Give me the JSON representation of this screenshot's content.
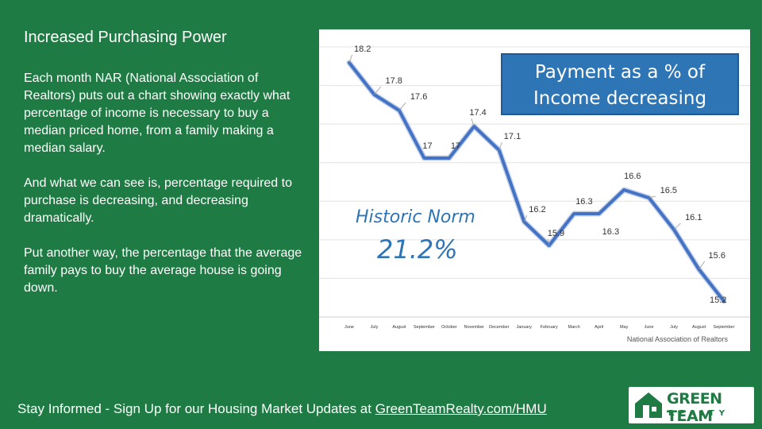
{
  "slide": {
    "title": "Increased Purchasing Power",
    "paragraphs": [
      "Each month NAR (National Association of Realtors) puts out a chart showing exactly what percentage of income is necessary to buy a median priced home, from a family making a median salary.",
      "And what we can see is, percentage required to purchase is decreasing, and decreasing dramatically.",
      "Put another way, the percentage that the average family pays to buy the average house is going down."
    ]
  },
  "footer": {
    "text": "Stay Informed - Sign Up for our Housing Market Updates at ",
    "link": "GreenTeamRealty.com/HMU"
  },
  "logo": {
    "line1": "GREEN TEAM",
    "line2": "REALTY"
  },
  "colors": {
    "background": "#1e7b43",
    "line": "#4472c4",
    "callout": "#2e75b6",
    "accent_text": "#2e75b6"
  },
  "chart_data": {
    "type": "line",
    "title": "",
    "callout": [
      "Payment as a % of",
      "Income decreasing"
    ],
    "annotation": {
      "label": "Historic Norm",
      "value": "21.2%"
    },
    "source": "National Association of Realtors",
    "x": [
      "June",
      "July",
      "August",
      "September",
      "October",
      "November",
      "December",
      "January",
      "February",
      "March",
      "April",
      "May",
      "June",
      "July",
      "August",
      "September"
    ],
    "series": [
      {
        "values": [
          18.2,
          17.8,
          17.6,
          17.0,
          17.0,
          17.4,
          17.1,
          16.2,
          15.9,
          16.3,
          16.3,
          16.6,
          16.5,
          16.1,
          15.6,
          15.2
        ],
        "labels": [
          "18.2",
          "17.8",
          "17.6",
          "17",
          "17",
          "17.4",
          "17.1",
          "16.2",
          "15.9",
          "16.3",
          "16.3",
          "16.6",
          "16.5",
          "16.1",
          "15.6",
          "15.2"
        ]
      }
    ],
    "ylim": [
      15.0,
      18.4
    ],
    "grid": true,
    "xlabel": "",
    "ylabel": ""
  }
}
